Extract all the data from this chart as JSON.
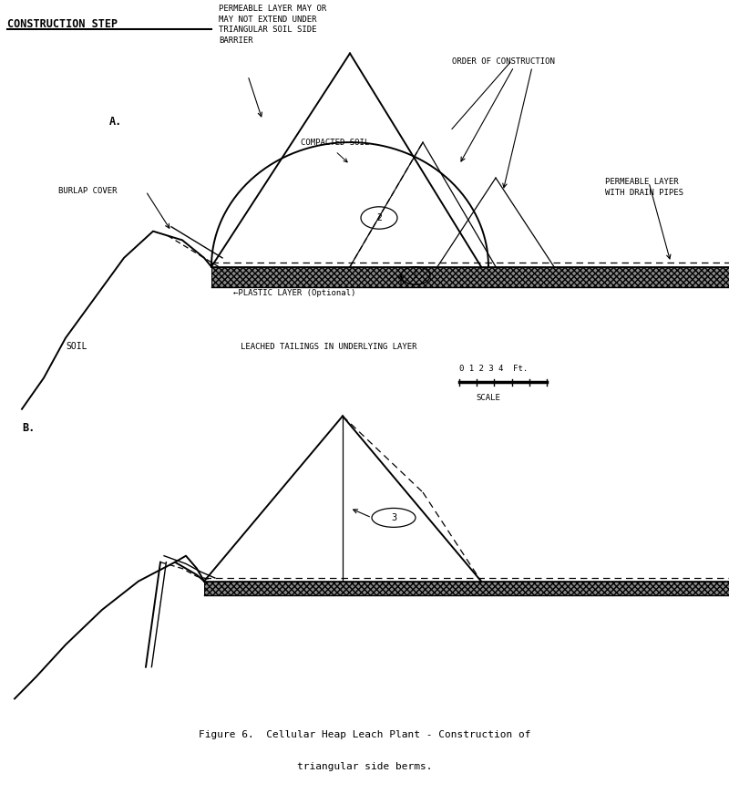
{
  "title": "CONSTRUCTION STEP",
  "figure_caption_line1": "Figure 6.  Cellular Heap Leach Plant - Construction of",
  "figure_caption_line2": "triangular side berms.",
  "bg_color": "#ffffff",
  "label_A": "A.",
  "label_B": "B.",
  "perm_note": "PERMEABLE LAYER MAY OR\nMAY NOT EXTEND UNDER\nTRIANGULAR SOIL SIDE\nBARRIER",
  "order_const": "ORDER OF CONSTRUCTION",
  "compacted": "COMPACTED SOIL",
  "perm_drain": "PERMEABLE LAYER\nWITH DRAIN PIPES",
  "burlap": "BURLAP COVER",
  "plastic": "←PLASTIC LAYER (Optional)",
  "soil_lbl": "SOIL",
  "leached": "LEACHED TAILINGS IN UNDERLYING LAYER",
  "scale_lbl": "0 1 2 3 4  Ft.",
  "scale_word": "SCALE"
}
